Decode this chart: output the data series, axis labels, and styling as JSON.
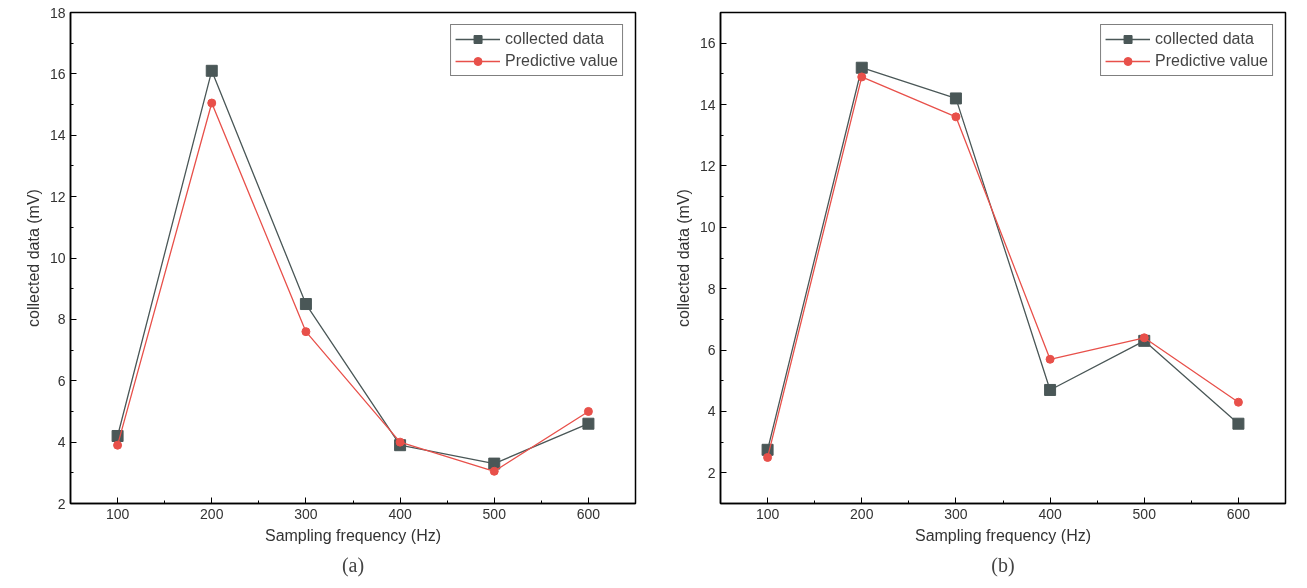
{
  "chart_data": [
    {
      "type": "line",
      "xlabel": "Sampling frequency (Hz)",
      "ylabel": "collected data (mV)",
      "x": [
        100,
        200,
        300,
        400,
        500,
        600
      ],
      "series": [
        {
          "name": "collected data",
          "color": "#4a5757",
          "marker": "square",
          "values": [
            4.2,
            16.1,
            8.5,
            3.9,
            3.3,
            4.6
          ]
        },
        {
          "name": "Predictive value",
          "color": "#e8504a",
          "marker": "circle",
          "values": [
            3.9,
            15.05,
            7.6,
            4.0,
            3.05,
            5.0
          ]
        }
      ],
      "xlim": [
        50,
        650
      ],
      "ylim": [
        2,
        18
      ],
      "xticks": [
        100,
        200,
        300,
        400,
        500,
        600
      ],
      "yticks": [
        2,
        4,
        6,
        8,
        10,
        12,
        14,
        16,
        18
      ],
      "grid": false,
      "legend": "top right",
      "line_style": "solid",
      "annotations": [
        "(a)"
      ]
    },
    {
      "type": "line",
      "xlabel": "Sampling frequency (Hz)",
      "ylabel": "collected data (mV)",
      "x": [
        100,
        200,
        300,
        400,
        500,
        600
      ],
      "series": [
        {
          "name": "collected data",
          "color": "#4a5757",
          "marker": "square",
          "values": [
            2.75,
            15.2,
            14.2,
            4.7,
            6.3,
            3.6
          ]
        },
        {
          "name": "Predictive value",
          "color": "#e8504a",
          "marker": "circle",
          "values": [
            2.5,
            14.9,
            13.6,
            5.7,
            6.4,
            4.3
          ]
        }
      ],
      "xlim": [
        50,
        650
      ],
      "ylim": [
        1,
        17
      ],
      "xticks": [
        100,
        200,
        300,
        400,
        500,
        600
      ],
      "yticks": [
        2,
        4,
        6,
        8,
        10,
        12,
        14,
        16
      ],
      "grid": false,
      "legend": "top right",
      "line_style": "solid",
      "annotations": [
        "(b)"
      ]
    }
  ]
}
